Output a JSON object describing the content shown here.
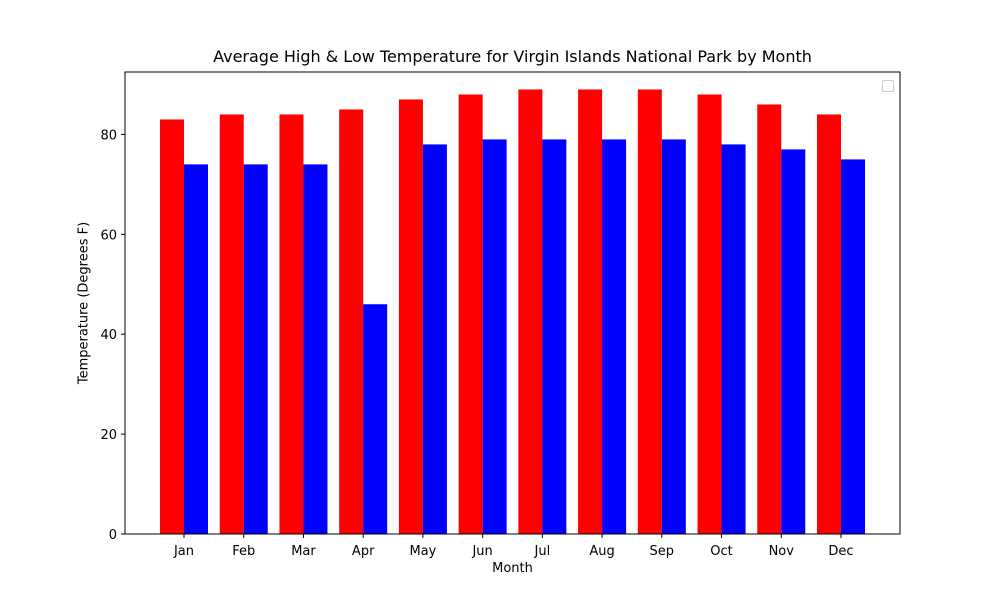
{
  "chart_data": {
    "type": "bar",
    "title": "Average High & Low Temperature for Virgin Islands National Park by Month",
    "xlabel": "Month",
    "ylabel": "Temperature (Degrees F)",
    "categories": [
      "Jan",
      "Feb",
      "Mar",
      "Apr",
      "May",
      "Jun",
      "Jul",
      "Aug",
      "Sep",
      "Oct",
      "Nov",
      "Dec"
    ],
    "series": [
      {
        "color": "#ff0000",
        "values": [
          83,
          84,
          84,
          85,
          87,
          88,
          89,
          89,
          89,
          88,
          86,
          84
        ]
      },
      {
        "color": "#0000ff",
        "values": [
          74,
          74,
          74,
          46,
          78,
          79,
          79,
          79,
          79,
          78,
          77,
          75
        ]
      }
    ],
    "ylim": [
      0,
      92.5
    ],
    "yticks": [
      0,
      20,
      40,
      60,
      80
    ],
    "grid": false,
    "legend": "upper-right (empty)"
  }
}
